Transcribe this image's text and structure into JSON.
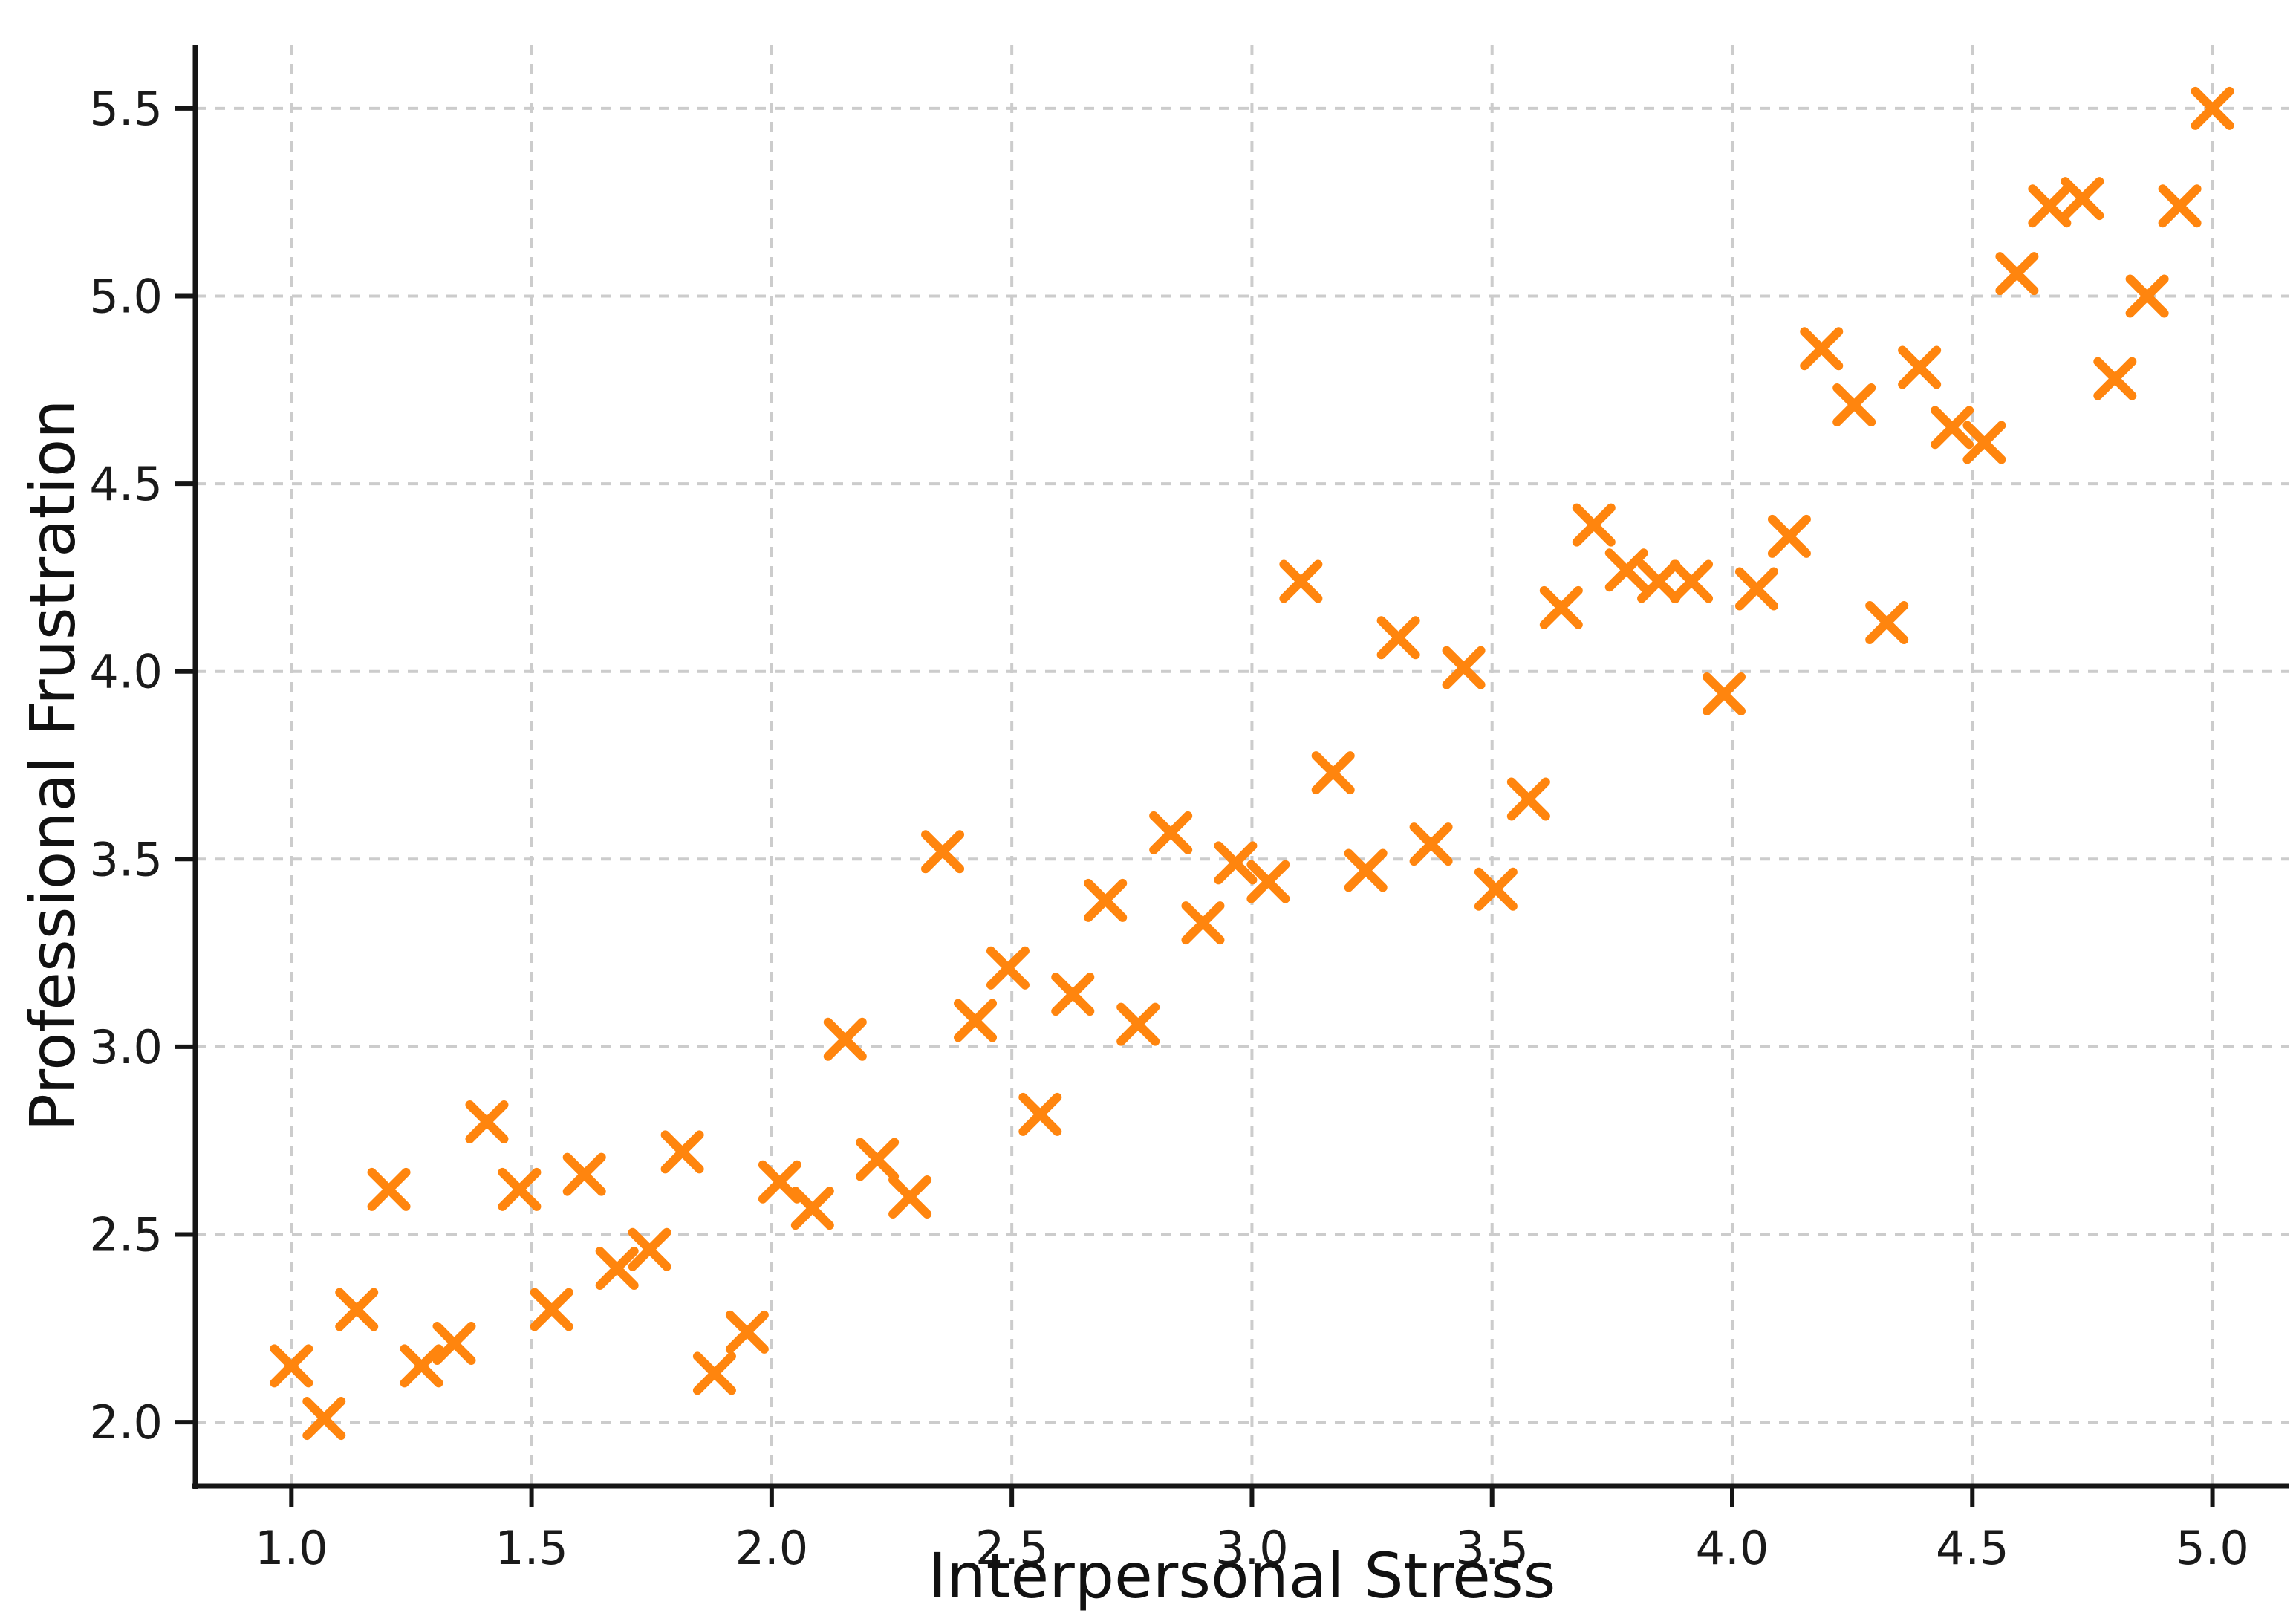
{
  "figure": {
    "background_color": "#ffffff"
  },
  "chart_data": {
    "type": "scatter",
    "title": "",
    "xlabel": "Interpersonal Stress",
    "ylabel": "Professional Frustration",
    "xlim": [
      0.8,
      5.16
    ],
    "ylim": [
      1.83,
      5.67
    ],
    "grid": true,
    "grid_color": "#cccccc",
    "axis_color": "#151515",
    "tick_color": "#1a1a1a",
    "marker": "x",
    "marker_color": "#ff850e",
    "legend": "none",
    "x_ticks": [
      1.0,
      1.5,
      2.0,
      2.5,
      3.0,
      3.5,
      4.0,
      4.5,
      5.0
    ],
    "x_tick_labels": [
      "1.0",
      "1.5",
      "2.0",
      "2.5",
      "3.0",
      "3.5",
      "4.0",
      "4.5",
      "5.0"
    ],
    "y_ticks": [
      2.0,
      2.5,
      3.0,
      3.5,
      4.0,
      4.5,
      5.0,
      5.5
    ],
    "y_tick_labels": [
      "2.0",
      "2.5",
      "3.0",
      "3.5",
      "4.0",
      "4.5",
      "5.0",
      "5.5"
    ],
    "points": [
      [
        1.0,
        2.15
      ],
      [
        1.068,
        2.01
      ],
      [
        1.136,
        2.3
      ],
      [
        1.203,
        2.62
      ],
      [
        1.271,
        2.15
      ],
      [
        1.339,
        2.21
      ],
      [
        1.407,
        2.8
      ],
      [
        1.475,
        2.62
      ],
      [
        1.542,
        2.3
      ],
      [
        1.61,
        2.66
      ],
      [
        1.678,
        2.41
      ],
      [
        1.746,
        2.46
      ],
      [
        1.814,
        2.72
      ],
      [
        1.881,
        2.13
      ],
      [
        1.949,
        2.24
      ],
      [
        2.017,
        2.64
      ],
      [
        2.085,
        2.57
      ],
      [
        2.153,
        3.02
      ],
      [
        2.22,
        2.7
      ],
      [
        2.288,
        2.6
      ],
      [
        2.356,
        3.52
      ],
      [
        2.424,
        3.07
      ],
      [
        2.492,
        3.21
      ],
      [
        2.559,
        2.82
      ],
      [
        2.627,
        3.14
      ],
      [
        2.695,
        3.39
      ],
      [
        2.763,
        3.06
      ],
      [
        2.831,
        3.57
      ],
      [
        2.898,
        3.33
      ],
      [
        2.966,
        3.49
      ],
      [
        3.034,
        3.44
      ],
      [
        3.102,
        4.24
      ],
      [
        3.169,
        3.73
      ],
      [
        3.237,
        3.47
      ],
      [
        3.305,
        4.09
      ],
      [
        3.373,
        3.54
      ],
      [
        3.441,
        4.01
      ],
      [
        3.508,
        3.42
      ],
      [
        3.576,
        3.66
      ],
      [
        3.644,
        4.17
      ],
      [
        3.712,
        4.39
      ],
      [
        3.78,
        4.27
      ],
      [
        3.847,
        4.24
      ],
      [
        3.915,
        4.24
      ],
      [
        3.983,
        3.94
      ],
      [
        4.051,
        4.22
      ],
      [
        4.119,
        4.36
      ],
      [
        4.186,
        4.86
      ],
      [
        4.254,
        4.71
      ],
      [
        4.322,
        4.13
      ],
      [
        4.39,
        4.81
      ],
      [
        4.458,
        4.65
      ],
      [
        4.525,
        4.61
      ],
      [
        4.593,
        5.06
      ],
      [
        4.661,
        5.24
      ],
      [
        4.729,
        5.26
      ],
      [
        4.797,
        4.78
      ],
      [
        4.864,
        5.0
      ],
      [
        4.932,
        5.24
      ],
      [
        5.0,
        5.5
      ]
    ]
  }
}
